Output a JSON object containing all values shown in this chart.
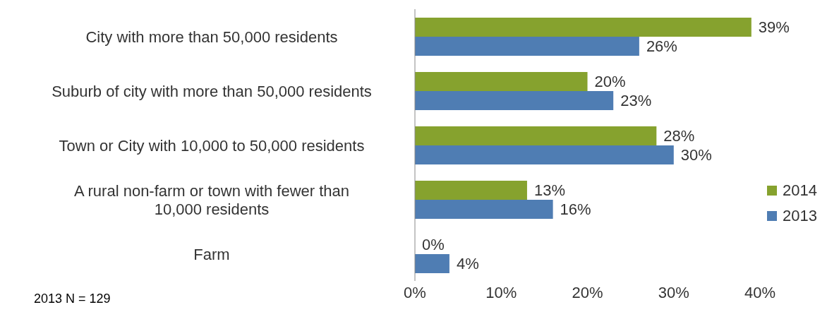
{
  "chart_data": {
    "type": "bar",
    "orientation": "horizontal",
    "categories": [
      "City with more than 50,000 residents",
      "Suburb of city with more than 50,000 residents",
      "Town or City with 10,000 to 50,000 residents",
      "A rural non-farm or town with fewer than 10,000 residents",
      "Farm"
    ],
    "series": [
      {
        "name": "2014",
        "color": "#86a22e",
        "values": [
          39,
          20,
          28,
          13,
          0
        ],
        "value_labels": [
          "39%",
          "20%",
          "28%",
          "13%",
          "0%"
        ]
      },
      {
        "name": "2013",
        "color": "#4f7db3",
        "values": [
          26,
          23,
          30,
          16,
          4
        ],
        "value_labels": [
          "26%",
          "23%",
          "30%",
          "16%",
          "4%"
        ]
      }
    ],
    "xlim": [
      0,
      40
    ],
    "xticks": [
      {
        "value": 0,
        "label": "0%"
      },
      {
        "value": 10,
        "label": "10%"
      },
      {
        "value": 20,
        "label": "20%"
      },
      {
        "value": 30,
        "label": "30%"
      },
      {
        "value": 40,
        "label": "40%"
      }
    ],
    "grid": false,
    "legend": "right",
    "annotations": [
      "2013 N = 129"
    ]
  }
}
